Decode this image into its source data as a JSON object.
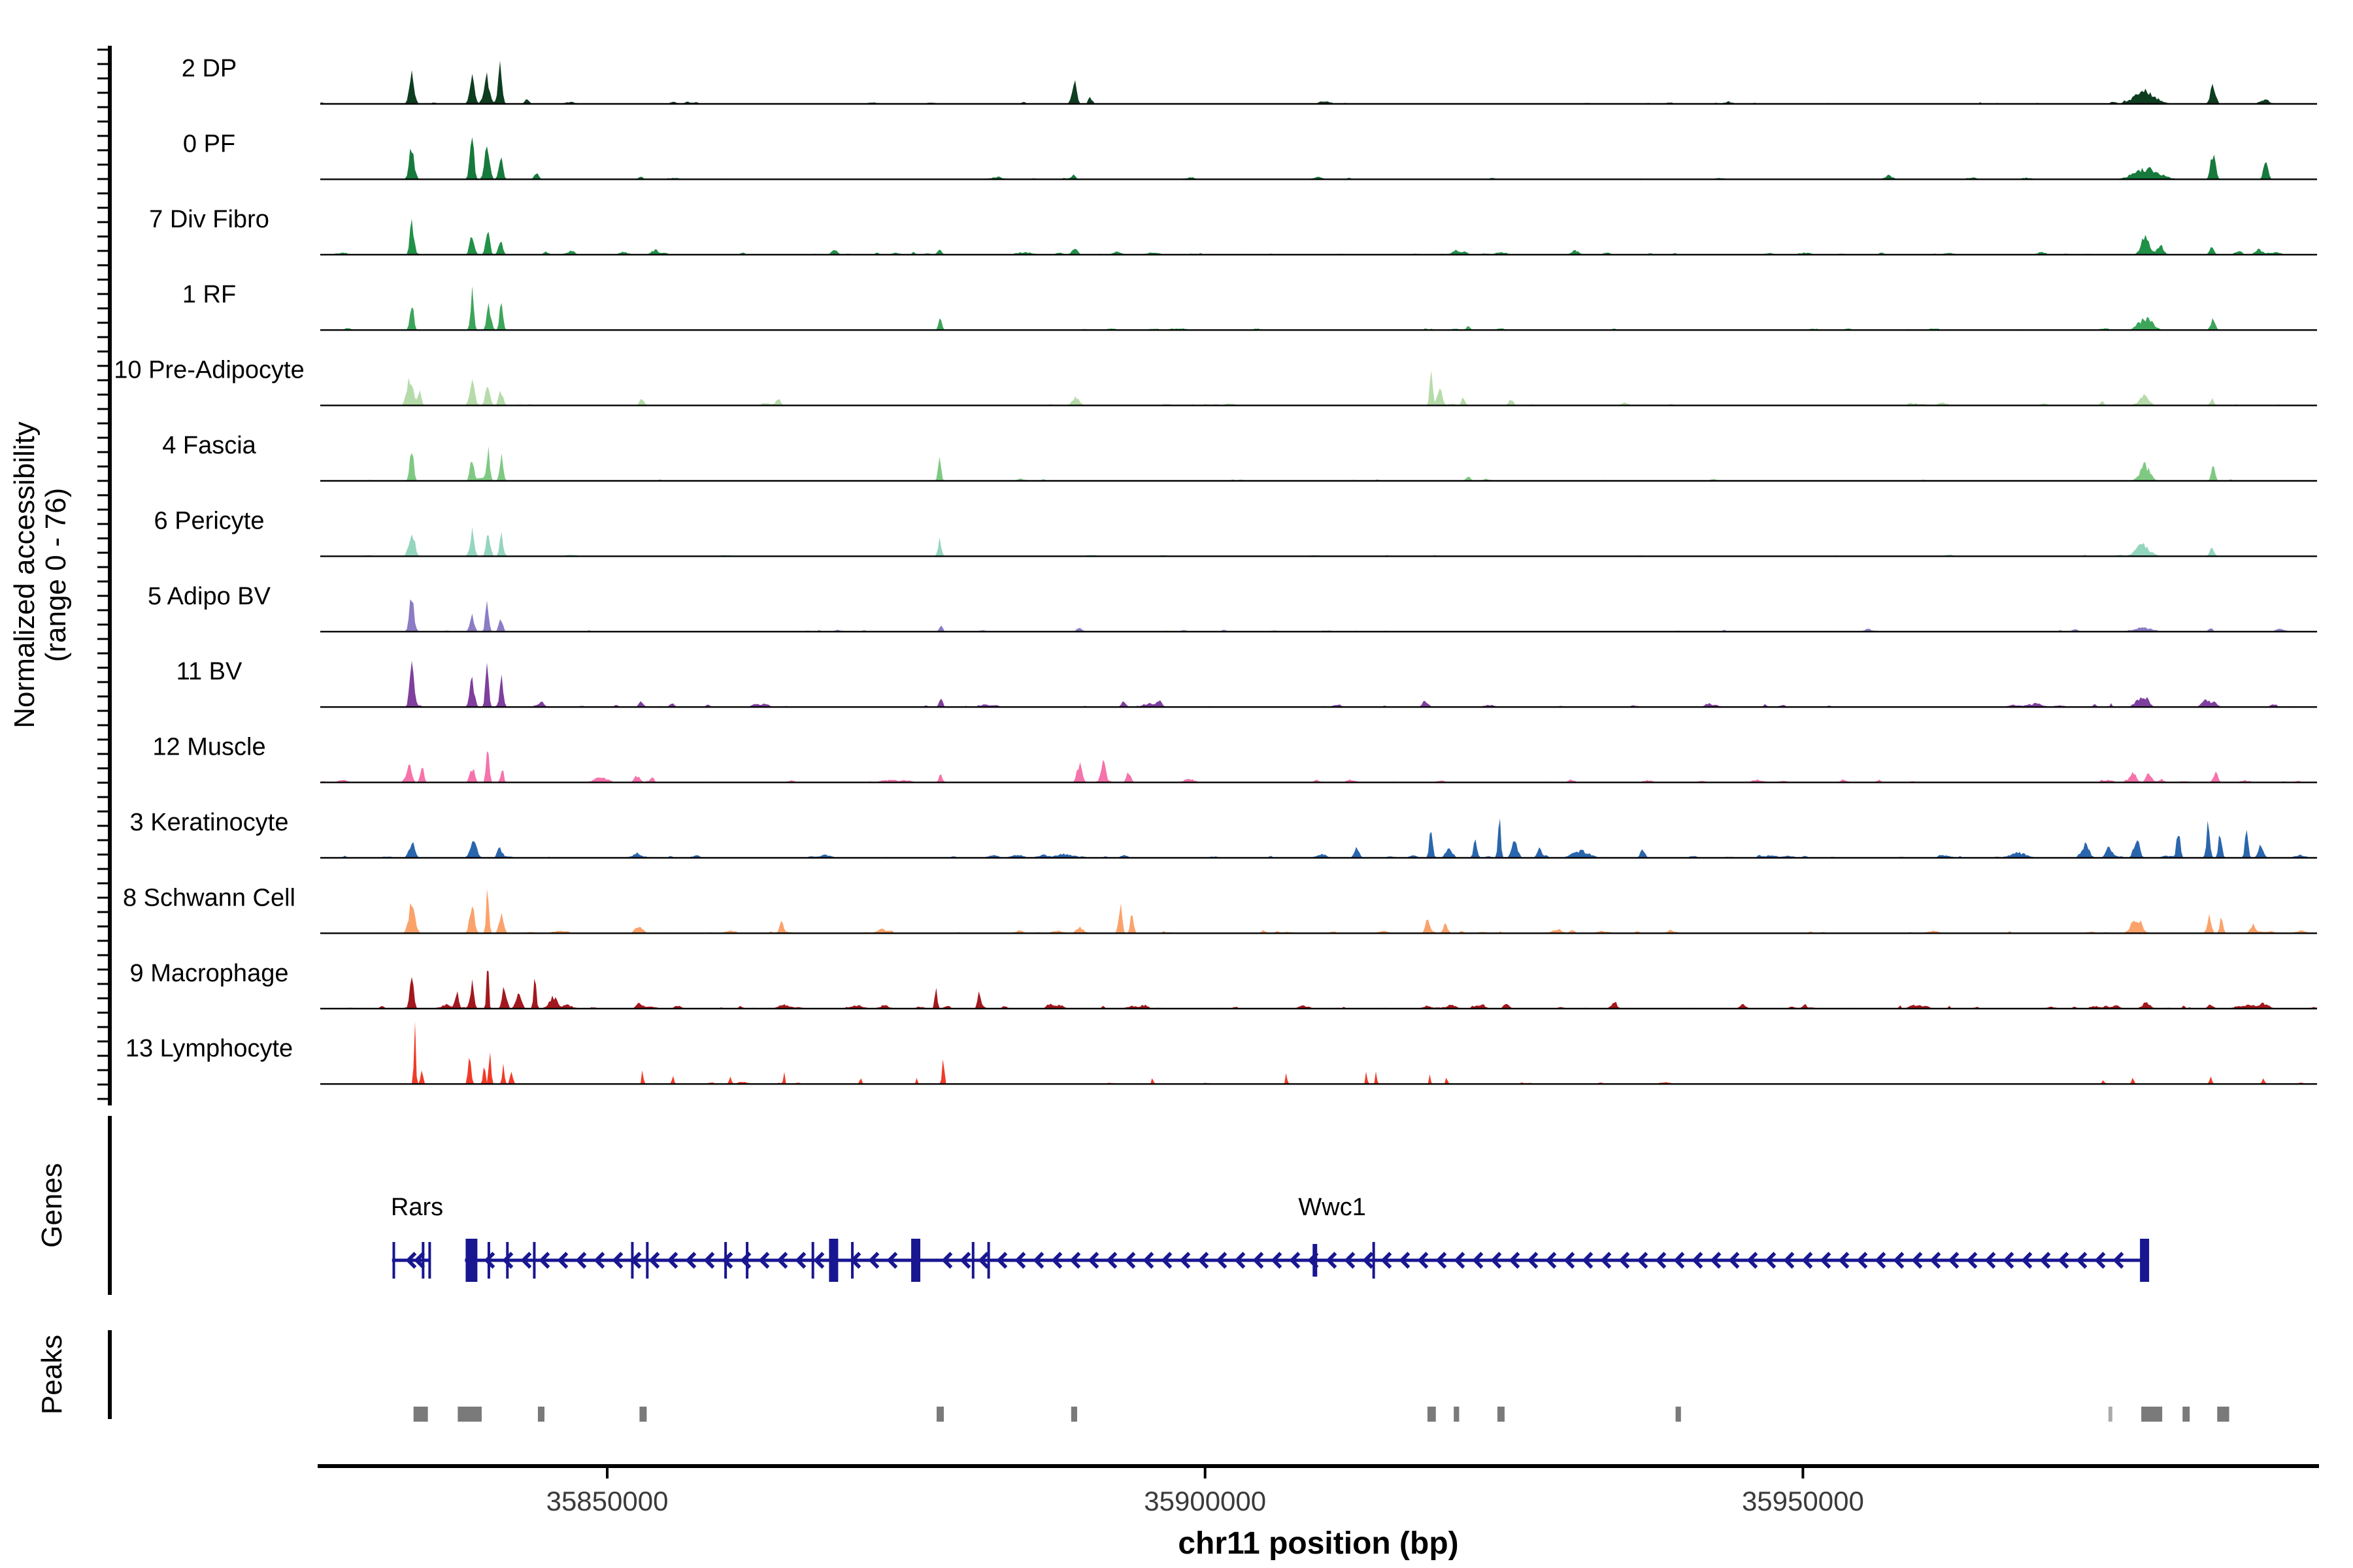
{
  "chart_data": {
    "type": "area",
    "title": "",
    "x_axis_title": "chr11 position (bp)",
    "y_axis_label_lines": [
      "Normalized accessibility",
      "(range 0 - 76)"
    ],
    "sections": {
      "genes": "Genes",
      "peaks": "Peaks"
    },
    "x_range_bp": [
      35826000,
      35993000
    ],
    "y_range": [
      0,
      76
    ],
    "grid": "off",
    "legend": "none",
    "x_ticks": [
      {
        "bp": 35850000,
        "label": "35850000"
      },
      {
        "bp": 35900000,
        "label": "35900000"
      },
      {
        "bp": 35950000,
        "label": "35950000"
      }
    ],
    "gene_color": "#181690",
    "peak_color": "#7a7a7a",
    "axis_color": "#000000",
    "tick_label_color": "#3a3a3a",
    "series": [
      {
        "name": "2 DP",
        "color": "#0e3d20",
        "seed": 901,
        "nmicro": 45,
        "mh": 2.5,
        "peaks": [
          [
            35833650,
            34,
            450
          ],
          [
            35838680,
            37,
            420
          ],
          [
            35839900,
            32,
            520
          ],
          [
            35841050,
            54,
            330
          ],
          [
            35843300,
            5,
            400
          ],
          [
            35889050,
            27,
            420
          ],
          [
            35890400,
            8,
            350
          ],
          [
            35978600,
            15,
            1800
          ],
          [
            35984300,
            24,
            450
          ],
          [
            35988600,
            5,
            800
          ]
        ]
      },
      {
        "name": "0 PF",
        "color": "#177a3c",
        "seed": 902,
        "nmicro": 40,
        "mh": 2.5,
        "peaks": [
          [
            35833650,
            40,
            450
          ],
          [
            35838680,
            50,
            380
          ],
          [
            35839950,
            37,
            450
          ],
          [
            35841100,
            27,
            360
          ],
          [
            35844100,
            6,
            400
          ],
          [
            35852800,
            4,
            400
          ],
          [
            35889000,
            5,
            400
          ],
          [
            35978800,
            12,
            2200
          ],
          [
            35984300,
            34,
            420
          ],
          [
            35988700,
            24,
            380
          ]
        ]
      },
      {
        "name": "7 Div Fibro",
        "color": "#219148",
        "seed": 903,
        "nmicro": 65,
        "mh": 3.5,
        "peaks": [
          [
            35833650,
            44,
            330
          ],
          [
            35838680,
            24,
            400
          ],
          [
            35840000,
            32,
            350
          ],
          [
            35841100,
            18,
            350
          ],
          [
            35847000,
            4,
            600
          ],
          [
            35854000,
            5,
            600
          ],
          [
            35869000,
            6,
            500
          ],
          [
            35877800,
            6,
            400
          ],
          [
            35889100,
            8,
            500
          ],
          [
            35921000,
            5,
            700
          ],
          [
            35931000,
            5,
            600
          ],
          [
            35978600,
            21,
            700
          ],
          [
            35979900,
            10,
            600
          ],
          [
            35984200,
            10,
            400
          ],
          [
            35988100,
            6,
            600
          ]
        ]
      },
      {
        "name": "1 RF",
        "color": "#3da55a",
        "seed": 904,
        "nmicro": 40,
        "mh": 2.5,
        "peaks": [
          [
            35833650,
            36,
            330
          ],
          [
            35838700,
            48,
            300
          ],
          [
            35840100,
            26,
            400
          ],
          [
            35841150,
            36,
            300
          ],
          [
            35877850,
            14,
            300
          ],
          [
            35922000,
            4,
            400
          ],
          [
            35978700,
            14,
            1200
          ],
          [
            35984300,
            13,
            400
          ]
        ]
      },
      {
        "name": "10 Pre-Adipocyte",
        "color": "#b6dbaa",
        "seed": 905,
        "nmicro": 55,
        "mh": 3,
        "peaks": [
          [
            35833500,
            32,
            550
          ],
          [
            35834300,
            20,
            300
          ],
          [
            35838700,
            24,
            450
          ],
          [
            35840000,
            22,
            400
          ],
          [
            35841100,
            16,
            400
          ],
          [
            35852900,
            8,
            400
          ],
          [
            35864300,
            6,
            400
          ],
          [
            35889200,
            11,
            600
          ],
          [
            35918900,
            44,
            250
          ],
          [
            35919600,
            24,
            400
          ],
          [
            35921600,
            10,
            300
          ],
          [
            35925600,
            6,
            400
          ],
          [
            35978500,
            11,
            900
          ],
          [
            35984200,
            8,
            300
          ]
        ]
      },
      {
        "name": "4 Fascia",
        "color": "#7fc982",
        "seed": 906,
        "nmicro": 40,
        "mh": 2.5,
        "peaks": [
          [
            35833650,
            34,
            350
          ],
          [
            35838700,
            30,
            350
          ],
          [
            35840050,
            38,
            300
          ],
          [
            35841150,
            32,
            300
          ],
          [
            35877800,
            24,
            300
          ],
          [
            35922000,
            5,
            400
          ],
          [
            35978600,
            18,
            900
          ],
          [
            35984300,
            16,
            350
          ]
        ]
      },
      {
        "name": "6 Pericyte",
        "color": "#94d5bd",
        "seed": 907,
        "nmicro": 35,
        "mh": 2,
        "peaks": [
          [
            35833650,
            32,
            500
          ],
          [
            35838700,
            28,
            400
          ],
          [
            35840050,
            30,
            350
          ],
          [
            35841150,
            24,
            350
          ],
          [
            35877800,
            21,
            300
          ],
          [
            35978400,
            13,
            1200
          ],
          [
            35984200,
            10,
            400
          ]
        ]
      },
      {
        "name": "5 Adipo BV",
        "color": "#8c7cc4",
        "seed": 908,
        "nmicro": 45,
        "mh": 2.5,
        "peaks": [
          [
            35833650,
            42,
            420
          ],
          [
            35838700,
            20,
            400
          ],
          [
            35839950,
            46,
            280
          ],
          [
            35841100,
            18,
            350
          ],
          [
            35877900,
            8,
            300
          ],
          [
            35889500,
            4,
            500
          ],
          [
            35978500,
            5,
            1500
          ],
          [
            35984100,
            4,
            400
          ]
        ]
      },
      {
        "name": "11 BV",
        "color": "#7e3f9d",
        "seed": 909,
        "nmicro": 75,
        "mh": 4,
        "peaks": [
          [
            35833650,
            46,
            380
          ],
          [
            35838700,
            34,
            400
          ],
          [
            35839950,
            50,
            280
          ],
          [
            35841150,
            32,
            350
          ],
          [
            35844600,
            5,
            400
          ],
          [
            35852800,
            6,
            400
          ],
          [
            35877900,
            13,
            300
          ],
          [
            35893200,
            8,
            400
          ],
          [
            35896200,
            6,
            400
          ],
          [
            35918500,
            5,
            500
          ],
          [
            35978100,
            8,
            800
          ],
          [
            35983600,
            6,
            600
          ]
        ]
      },
      {
        "name": "12 Muscle",
        "color": "#f672ab",
        "seed": 910,
        "nmicro": 60,
        "mh": 3.5,
        "peaks": [
          [
            35833400,
            20,
            500
          ],
          [
            35834500,
            22,
            300
          ],
          [
            35838700,
            18,
            400
          ],
          [
            35840000,
            34,
            280
          ],
          [
            35841200,
            16,
            300
          ],
          [
            35849500,
            6,
            1200
          ],
          [
            35852500,
            8,
            500
          ],
          [
            35853800,
            6,
            300
          ],
          [
            35877900,
            10,
            300
          ],
          [
            35889500,
            24,
            450
          ],
          [
            35891500,
            26,
            400
          ],
          [
            35893600,
            11,
            400
          ],
          [
            35977600,
            11,
            600
          ],
          [
            35978900,
            10,
            500
          ],
          [
            35984500,
            13,
            400
          ]
        ]
      },
      {
        "name": "3 Keratinocyte",
        "color": "#2a66ad",
        "seed": 911,
        "nmicro": 75,
        "mh": 3.5,
        "peaks": [
          [
            35833650,
            18,
            500
          ],
          [
            35838800,
            20,
            600
          ],
          [
            35841000,
            12,
            400
          ],
          [
            35852500,
            5,
            500
          ],
          [
            35912700,
            11,
            450
          ],
          [
            35918900,
            32,
            300
          ],
          [
            35920400,
            12,
            600
          ],
          [
            35922600,
            20,
            350
          ],
          [
            35924600,
            46,
            250
          ],
          [
            35925900,
            22,
            500
          ],
          [
            35928000,
            12,
            400
          ],
          [
            35931500,
            8,
            1500
          ],
          [
            35936600,
            10,
            400
          ],
          [
            35968000,
            6,
            1500
          ],
          [
            35973600,
            16,
            700
          ],
          [
            35975600,
            13,
            500
          ],
          [
            35977900,
            24,
            500
          ],
          [
            35981400,
            36,
            300
          ],
          [
            35983900,
            42,
            320
          ],
          [
            35984900,
            28,
            300
          ],
          [
            35987100,
            38,
            280
          ],
          [
            35988300,
            14,
            500
          ]
        ]
      },
      {
        "name": "8 Schwann Cell",
        "color": "#fba26b",
        "seed": 912,
        "nmicro": 85,
        "mh": 3.5,
        "peaks": [
          [
            35833650,
            36,
            550
          ],
          [
            35838700,
            32,
            450
          ],
          [
            35840000,
            60,
            230
          ],
          [
            35841150,
            24,
            400
          ],
          [
            35852600,
            8,
            600
          ],
          [
            35864600,
            10,
            380
          ],
          [
            35889500,
            6,
            600
          ],
          [
            35892900,
            34,
            320
          ],
          [
            35893900,
            24,
            300
          ],
          [
            35918600,
            16,
            400
          ],
          [
            35920100,
            11,
            400
          ],
          [
            35977900,
            18,
            900
          ],
          [
            35984000,
            24,
            300
          ],
          [
            35985000,
            17,
            300
          ],
          [
            35987600,
            10,
            400
          ]
        ]
      },
      {
        "name": "9 Macrophage",
        "color": "#a3181f",
        "seed": 913,
        "nmicro": 95,
        "mh": 4.5,
        "peaks": [
          [
            35833650,
            46,
            330
          ],
          [
            35837400,
            16,
            300
          ],
          [
            35838700,
            32,
            330
          ],
          [
            35840000,
            62,
            190
          ],
          [
            35841400,
            28,
            380
          ],
          [
            35842600,
            16,
            500
          ],
          [
            35843950,
            38,
            250
          ],
          [
            35845500,
            12,
            600
          ],
          [
            35877500,
            24,
            240
          ],
          [
            35881100,
            20,
            240
          ],
          [
            35887000,
            5,
            600
          ],
          [
            35925200,
            6,
            500
          ],
          [
            35934200,
            8,
            500
          ],
          [
            35945000,
            5,
            600
          ],
          [
            35976200,
            5,
            600
          ],
          [
            35978700,
            7,
            700
          ],
          [
            35984100,
            5,
            500
          ]
        ]
      },
      {
        "name": "13 Lymphocyte",
        "color": "#f03b27",
        "seed": 914,
        "nmicro": 30,
        "mh": 2.5,
        "peaks": [
          [
            35833900,
            70,
            170
          ],
          [
            35834500,
            24,
            200
          ],
          [
            35838500,
            36,
            260
          ],
          [
            35839700,
            24,
            220
          ],
          [
            35840200,
            50,
            180
          ],
          [
            35841300,
            32,
            180
          ],
          [
            35842000,
            16,
            250
          ],
          [
            35852950,
            20,
            140
          ],
          [
            35855500,
            8,
            200
          ],
          [
            35860300,
            10,
            200
          ],
          [
            35864800,
            16,
            150
          ],
          [
            35871200,
            10,
            180
          ],
          [
            35875900,
            10,
            150
          ],
          [
            35878100,
            32,
            190
          ],
          [
            35895600,
            8,
            150
          ],
          [
            35906800,
            12,
            140
          ],
          [
            35913500,
            16,
            150
          ],
          [
            35914300,
            14,
            150
          ],
          [
            35918800,
            10,
            150
          ],
          [
            35920200,
            11,
            150
          ],
          [
            35975100,
            6,
            200
          ],
          [
            35977600,
            8,
            200
          ],
          [
            35984100,
            10,
            200
          ],
          [
            35988500,
            6,
            200
          ]
        ]
      }
    ],
    "genes": [
      {
        "name": "Rars",
        "strand": "-",
        "start": 35832000,
        "end": 35835200,
        "label_bp": 35831900,
        "thin_exons": [
          35832150,
          35834600,
          35835150
        ],
        "med_exons": [],
        "thick_exons": [],
        "arrows": [
          35833400,
          35834100
        ]
      },
      {
        "name": "Wwc1",
        "strand": "-",
        "start": 35838100,
        "end": 35978950,
        "label_bp": 35907800,
        "thin_exons": [
          35840100,
          35841650,
          35843900,
          35852100,
          35853350,
          35859900,
          35861700,
          35867200,
          35870500,
          35880600,
          35881900,
          35914100
        ],
        "med_exons": [
          [
            35909050,
            35909400
          ]
        ],
        "thick_exons": [
          [
            35838160,
            35839140
          ],
          [
            35868550,
            35868990
          ],
          [
            35875420,
            35876070
          ],
          [
            35978190,
            35978950
          ]
        ],
        "arrows": "auto"
      }
    ],
    "peaks_track": [
      [
        35833800,
        35835000
      ],
      [
        35837500,
        35839500
      ],
      [
        35844200,
        35844750
      ],
      [
        35852700,
        35853300
      ],
      [
        35877550,
        35878150
      ],
      [
        35888800,
        35889300
      ],
      [
        35918600,
        35919300
      ],
      [
        35920800,
        35921250
      ],
      [
        35924450,
        35925050
      ],
      [
        35939350,
        35939800
      ],
      [
        35975550,
        35975800,
        "#ababab"
      ],
      [
        35978300,
        35980050
      ],
      [
        35981750,
        35982350
      ],
      [
        35984650,
        35985650
      ]
    ]
  }
}
